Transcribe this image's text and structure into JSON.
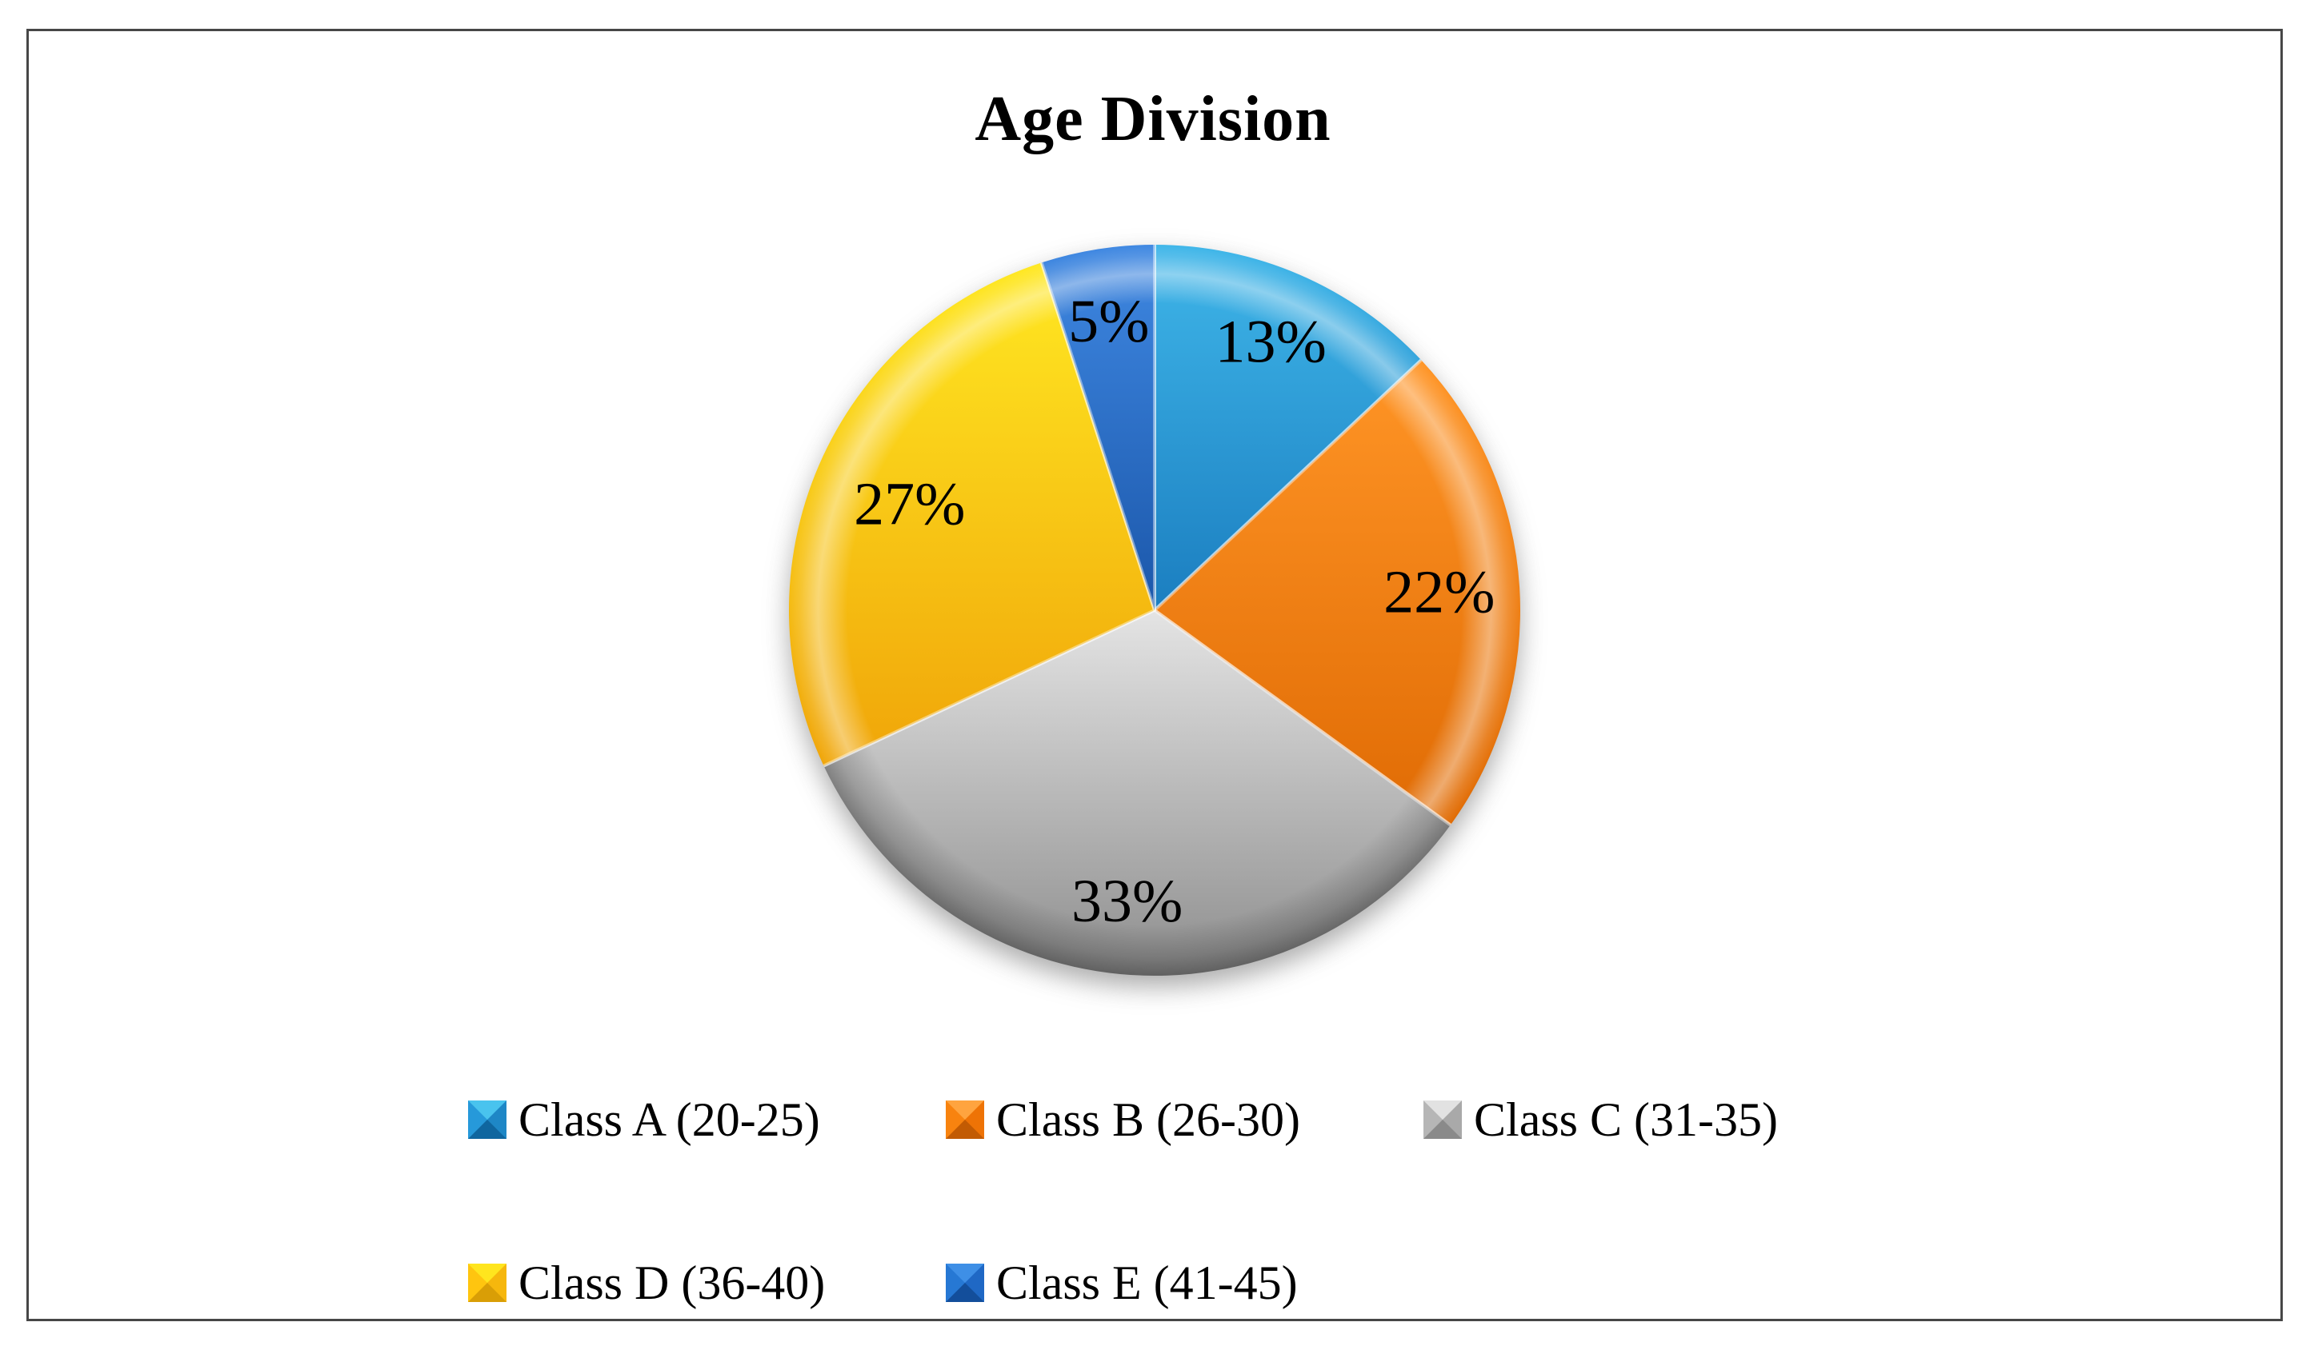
{
  "chart_data": {
    "type": "pie",
    "title": "Age Division",
    "categories": [
      "Class A (20-25)",
      "Class B (26-30)",
      "Class C (31-35)",
      "Class D (36-40)",
      "Class E (41-45)"
    ],
    "values": [
      13,
      22,
      33,
      27,
      5
    ],
    "data_labels": [
      "13%",
      "22%",
      "33%",
      "27%",
      "5%"
    ],
    "total": 100,
    "start_angle_deg": 0,
    "direction": "clockwise",
    "legend_position": "bottom",
    "grid": false,
    "label_radius": [
      0.8,
      0.78,
      0.8,
      0.73,
      0.8
    ],
    "colors": [
      {
        "name": "light-blue",
        "base": "#2196D8",
        "top": "#3FB6E9",
        "bottom": "#1B7EC0",
        "rim": "light",
        "legend_facets": {
          "top": "#49C3EE",
          "left": "#2699DA",
          "right": "#1E87C6",
          "bottom": "#0F669F"
        }
      },
      {
        "name": "orange",
        "base": "#F57D0E",
        "top": "#FF9526",
        "bottom": "#E06B04",
        "rim": "light",
        "legend_facets": {
          "top": "#FFA43F",
          "left": "#F8830F",
          "right": "#EE7306",
          "bottom": "#C25B03"
        }
      },
      {
        "name": "gray",
        "base": "#A6A6A6",
        "top": "#E4E4E4",
        "bottom": "#8E8E8E",
        "rim": "dark",
        "legend_facets": {
          "top": "#E2E2E2",
          "left": "#B6B6B6",
          "right": "#A9A9A9",
          "bottom": "#8A8A8A"
        }
      },
      {
        "name": "yellow",
        "base": "#FFC90F",
        "top": "#FFE822",
        "bottom": "#F0A509",
        "rim": "light",
        "legend_facets": {
          "top": "#FFE51E",
          "left": "#FFC50F",
          "right": "#F6B70D",
          "bottom": "#D99E06"
        }
      },
      {
        "name": "dark-blue",
        "base": "#2A72D0",
        "top": "#3F88E2",
        "bottom": "#1B57AA",
        "rim": "light",
        "legend_facets": {
          "top": "#3E8FE6",
          "left": "#2678D4",
          "right": "#1F68C5",
          "bottom": "#134E9B"
        }
      }
    ]
  }
}
